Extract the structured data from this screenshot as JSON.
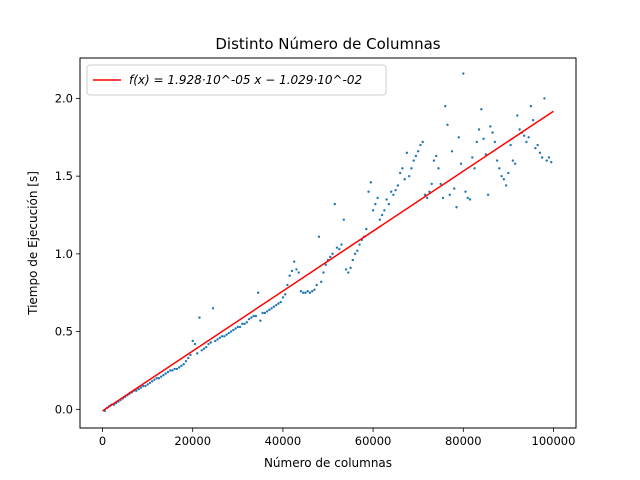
{
  "chart_data": {
    "type": "scatter",
    "title": "Distinto Número de Columnas",
    "xlabel": "Número de columnas",
    "ylabel": "Tiempo de Ejecución [s]",
    "xlim": [
      -5000,
      105000
    ],
    "ylim": [
      -0.12,
      2.26
    ],
    "xticks": [
      0,
      20000,
      40000,
      60000,
      80000,
      100000
    ],
    "xtick_labels": [
      "0",
      "20000",
      "40000",
      "60000",
      "80000",
      "100000"
    ],
    "yticks": [
      0.0,
      0.5,
      1.0,
      1.5,
      2.0
    ],
    "ytick_labels": [
      "0.0",
      "0.5",
      "1.0",
      "1.5",
      "2.0"
    ],
    "grid": false,
    "legend_position": "top-left",
    "colors": {
      "points": "#1f77b4",
      "fit": "#ff0000"
    },
    "fit": {
      "label": "f(x) = 1.928·10^-05 x − 1.029·10^-02",
      "slope": 1.928e-05,
      "intercept": -0.01029,
      "x_range": [
        0,
        100000
      ]
    },
    "points": [
      [
        500,
        -0.01
      ],
      [
        1000,
        0.01
      ],
      [
        1500,
        0.02
      ],
      [
        2000,
        0.03
      ],
      [
        2500,
        0.03
      ],
      [
        3000,
        0.04
      ],
      [
        3500,
        0.05
      ],
      [
        4000,
        0.06
      ],
      [
        4500,
        0.07
      ],
      [
        5000,
        0.08
      ],
      [
        5500,
        0.09
      ],
      [
        6000,
        0.1
      ],
      [
        6500,
        0.11
      ],
      [
        7000,
        0.12
      ],
      [
        7500,
        0.12
      ],
      [
        8000,
        0.13
      ],
      [
        8500,
        0.14
      ],
      [
        9000,
        0.15
      ],
      [
        9500,
        0.15
      ],
      [
        10000,
        0.16
      ],
      [
        10500,
        0.17
      ],
      [
        11000,
        0.18
      ],
      [
        11500,
        0.19
      ],
      [
        12000,
        0.2
      ],
      [
        12500,
        0.2
      ],
      [
        13000,
        0.21
      ],
      [
        13500,
        0.22
      ],
      [
        14000,
        0.23
      ],
      [
        14500,
        0.24
      ],
      [
        15000,
        0.25
      ],
      [
        15500,
        0.25
      ],
      [
        16000,
        0.26
      ],
      [
        16500,
        0.26
      ],
      [
        17000,
        0.27
      ],
      [
        17500,
        0.28
      ],
      [
        18000,
        0.29
      ],
      [
        18500,
        0.31
      ],
      [
        19000,
        0.33
      ],
      [
        19500,
        0.35
      ],
      [
        20000,
        0.44
      ],
      [
        20500,
        0.42
      ],
      [
        21000,
        0.36
      ],
      [
        21500,
        0.59
      ],
      [
        22000,
        0.38
      ],
      [
        22500,
        0.39
      ],
      [
        23000,
        0.4
      ],
      [
        23500,
        0.42
      ],
      [
        24000,
        0.43
      ],
      [
        24500,
        0.65
      ],
      [
        25000,
        0.44
      ],
      [
        25500,
        0.45
      ],
      [
        26000,
        0.46
      ],
      [
        26500,
        0.47
      ],
      [
        27000,
        0.47
      ],
      [
        27500,
        0.48
      ],
      [
        28000,
        0.49
      ],
      [
        28500,
        0.5
      ],
      [
        29000,
        0.51
      ],
      [
        29500,
        0.52
      ],
      [
        30000,
        0.53
      ],
      [
        30500,
        0.53
      ],
      [
        31000,
        0.55
      ],
      [
        31500,
        0.55
      ],
      [
        32000,
        0.56
      ],
      [
        32500,
        0.58
      ],
      [
        33000,
        0.59
      ],
      [
        33500,
        0.6
      ],
      [
        34000,
        0.6
      ],
      [
        34500,
        0.75
      ],
      [
        35000,
        0.57
      ],
      [
        35500,
        0.62
      ],
      [
        36000,
        0.62
      ],
      [
        36500,
        0.63
      ],
      [
        37000,
        0.64
      ],
      [
        37500,
        0.65
      ],
      [
        38000,
        0.66
      ],
      [
        38500,
        0.67
      ],
      [
        39000,
        0.68
      ],
      [
        39500,
        0.69
      ],
      [
        40000,
        0.72
      ],
      [
        40500,
        0.74
      ],
      [
        41000,
        0.8
      ],
      [
        41500,
        0.86
      ],
      [
        42000,
        0.89
      ],
      [
        42500,
        0.95
      ],
      [
        43000,
        0.9
      ],
      [
        43500,
        0.88
      ],
      [
        44000,
        0.76
      ],
      [
        44500,
        0.75
      ],
      [
        45000,
        0.75
      ],
      [
        45500,
        0.76
      ],
      [
        46000,
        0.75
      ],
      [
        46500,
        0.76
      ],
      [
        47000,
        0.77
      ],
      [
        47500,
        0.8
      ],
      [
        48000,
        1.11
      ],
      [
        48500,
        0.82
      ],
      [
        49000,
        0.88
      ],
      [
        49500,
        0.93
      ],
      [
        50000,
        0.96
      ],
      [
        50500,
        0.98
      ],
      [
        51000,
        1.0
      ],
      [
        51500,
        1.32
      ],
      [
        52000,
        1.04
      ],
      [
        52500,
        1.03
      ],
      [
        53000,
        1.06
      ],
      [
        53500,
        1.22
      ],
      [
        54000,
        0.9
      ],
      [
        54500,
        0.88
      ],
      [
        55000,
        0.91
      ],
      [
        55500,
        0.96
      ],
      [
        56000,
        1.0
      ],
      [
        56500,
        1.02
      ],
      [
        57000,
        1.06
      ],
      [
        57500,
        1.09
      ],
      [
        58000,
        1.11
      ],
      [
        58500,
        1.16
      ],
      [
        59000,
        1.4
      ],
      [
        59500,
        1.46
      ],
      [
        60000,
        1.28
      ],
      [
        60500,
        1.32
      ],
      [
        61000,
        1.36
      ],
      [
        61500,
        1.22
      ],
      [
        62000,
        1.25
      ],
      [
        62500,
        1.28
      ],
      [
        63000,
        1.35
      ],
      [
        63500,
        1.32
      ],
      [
        64000,
        1.4
      ],
      [
        64500,
        1.38
      ],
      [
        65000,
        1.41
      ],
      [
        65500,
        1.44
      ],
      [
        66000,
        1.52
      ],
      [
        66500,
        1.55
      ],
      [
        67000,
        1.48
      ],
      [
        67500,
        1.65
      ],
      [
        68000,
        1.5
      ],
      [
        68500,
        1.55
      ],
      [
        69000,
        1.6
      ],
      [
        69500,
        1.63
      ],
      [
        70000,
        1.66
      ],
      [
        70500,
        1.7
      ],
      [
        71000,
        1.72
      ],
      [
        71500,
        1.38
      ],
      [
        72000,
        1.36
      ],
      [
        72500,
        1.4
      ],
      [
        73000,
        1.45
      ],
      [
        73500,
        1.6
      ],
      [
        74000,
        1.63
      ],
      [
        74500,
        1.55
      ],
      [
        75000,
        1.45
      ],
      [
        75500,
        1.36
      ],
      [
        76000,
        1.95
      ],
      [
        76500,
        1.83
      ],
      [
        77000,
        1.38
      ],
      [
        77500,
        1.66
      ],
      [
        78000,
        1.42
      ],
      [
        78500,
        1.3
      ],
      [
        79000,
        1.75
      ],
      [
        79500,
        1.58
      ],
      [
        80000,
        2.16
      ],
      [
        80500,
        1.4
      ],
      [
        81000,
        1.36
      ],
      [
        81500,
        1.35
      ],
      [
        82000,
        1.62
      ],
      [
        82500,
        1.55
      ],
      [
        83000,
        1.72
      ],
      [
        83500,
        1.8
      ],
      [
        84000,
        1.93
      ],
      [
        84500,
        1.74
      ],
      [
        85000,
        1.64
      ],
      [
        85500,
        1.38
      ],
      [
        86000,
        1.82
      ],
      [
        86500,
        1.78
      ],
      [
        87000,
        1.72
      ],
      [
        87500,
        1.6
      ],
      [
        88000,
        1.55
      ],
      [
        88500,
        1.5
      ],
      [
        89000,
        1.48
      ],
      [
        89500,
        1.44
      ],
      [
        90000,
        1.52
      ],
      [
        90500,
        1.7
      ],
      [
        91000,
        1.6
      ],
      [
        91500,
        1.58
      ],
      [
        92000,
        1.89
      ],
      [
        92500,
        1.8
      ],
      [
        93000,
        1.78
      ],
      [
        93500,
        1.76
      ],
      [
        94000,
        1.72
      ],
      [
        94500,
        1.75
      ],
      [
        95000,
        1.95
      ],
      [
        95500,
        1.86
      ],
      [
        96000,
        1.68
      ],
      [
        96500,
        1.7
      ],
      [
        97000,
        1.65
      ],
      [
        97500,
        1.62
      ],
      [
        98000,
        2.0
      ],
      [
        98500,
        1.6
      ],
      [
        99000,
        1.62
      ],
      [
        99500,
        1.59
      ]
    ]
  }
}
